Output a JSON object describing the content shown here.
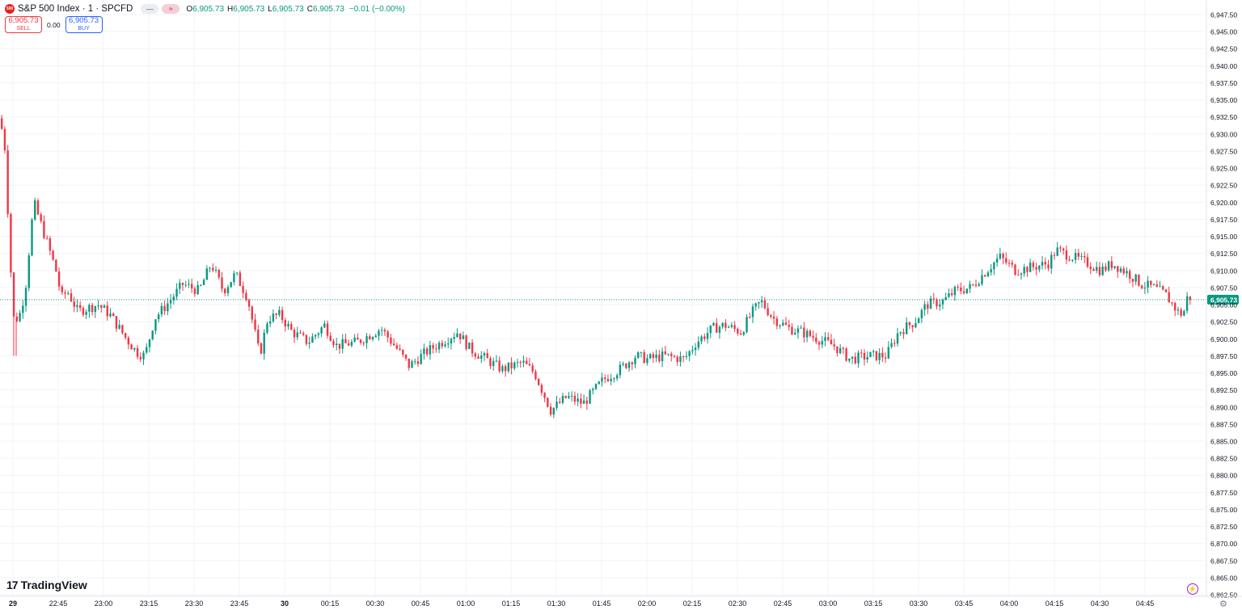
{
  "symbol": {
    "logo_text": "500",
    "title": "S&P 500 Index · 1 · SPCFD",
    "pill1": "—",
    "pill2": "≈"
  },
  "ohlc": {
    "o_label": "O",
    "o_value": "6,905.73",
    "h_label": "H",
    "h_value": "6,905.73",
    "l_label": "L",
    "l_value": "6,905.73",
    "c_label": "C",
    "c_value": "6,905.73",
    "change": "−0.01 (−0.00%)"
  },
  "trade": {
    "sell_price": "6,905.73",
    "sell_label": "SELL",
    "spread": "0.00",
    "buy_price": "6,905.73",
    "buy_label": "BUY"
  },
  "branding": {
    "logo_mark": "17",
    "logo_text": "TradingView"
  },
  "colors": {
    "up": "#089981",
    "down": "#f23645",
    "grid": "#f0f3fa",
    "axis_text": "#131722",
    "price_tag": "#089981"
  },
  "chart_data": {
    "type": "candlestick",
    "current_price": 6905.73,
    "current_price_label": "6,905.73",
    "y_axis": {
      "min": 6862.5,
      "max": 6947.5,
      "step": 2.5,
      "tick_labels": [
        "6,947.50",
        "6,945.00",
        "6,942.50",
        "6,940.00",
        "6,937.50",
        "6,935.00",
        "6,932.50",
        "6,930.00",
        "6,927.50",
        "6,925.00",
        "6,922.50",
        "6,920.00",
        "6,917.50",
        "6,915.00",
        "6,912.50",
        "6,910.00",
        "6,907.50",
        "6,905.00",
        "6,902.50",
        "6,900.00",
        "6,897.50",
        "6,895.00",
        "6,892.50",
        "6,890.00",
        "6,887.50",
        "6,885.00",
        "6,882.50",
        "6,880.00",
        "6,877.50",
        "6,875.00",
        "6,872.50",
        "6,870.00",
        "6,867.50",
        "6,865.00",
        "6,862.50"
      ]
    },
    "x_axis": {
      "tick_labels": [
        "29",
        "22:45",
        "23:00",
        "23:15",
        "23:30",
        "23:45",
        "30",
        "00:15",
        "00:30",
        "00:45",
        "01:00",
        "01:15",
        "01:30",
        "01:45",
        "02:00",
        "02:15",
        "02:30",
        "02:45",
        "03:00",
        "03:15",
        "03:30",
        "03:45",
        "04:00",
        "04:15",
        "04:30",
        "04:45"
      ]
    },
    "grid": true,
    "path_anchors_close": [
      [
        0,
        6931.5
      ],
      [
        2,
        6930.0
      ],
      [
        4,
        6929.8
      ],
      [
        15,
        6903.0
      ],
      [
        22,
        6903.0
      ],
      [
        30,
        6907.0
      ],
      [
        38,
        6917.0
      ],
      [
        42,
        6919.5
      ],
      [
        60,
        6913.0
      ],
      [
        68,
        6910.0
      ],
      [
        75,
        6906.0
      ],
      [
        82,
        6907.0
      ],
      [
        95,
        6904.0
      ],
      [
        120,
        6905.0
      ],
      [
        135,
        6903.5
      ],
      [
        155,
        6900.0
      ],
      [
        168,
        6898.0
      ],
      [
        178,
        6897.5
      ],
      [
        190,
        6903.0
      ],
      [
        205,
        6905.0
      ],
      [
        225,
        6908.0
      ],
      [
        245,
        6907.0
      ],
      [
        260,
        6911.0
      ],
      [
        275,
        6907.0
      ],
      [
        290,
        6909.5
      ],
      [
        305,
        6906.0
      ],
      [
        320,
        6897.5
      ],
      [
        330,
        6903.0
      ],
      [
        345,
        6903.5
      ],
      [
        360,
        6901.0
      ],
      [
        380,
        6899.5
      ],
      [
        400,
        6902.0
      ],
      [
        415,
        6899.0
      ],
      [
        440,
        6899.5
      ],
      [
        470,
        6901.5
      ],
      [
        490,
        6898.5
      ],
      [
        505,
        6896.0
      ],
      [
        525,
        6898.0
      ],
      [
        545,
        6899.5
      ],
      [
        565,
        6901.0
      ],
      [
        580,
        6898.5
      ],
      [
        600,
        6897.0
      ],
      [
        620,
        6895.5
      ],
      [
        645,
        6896.5
      ],
      [
        660,
        6895.0
      ],
      [
        680,
        6889.5
      ],
      [
        700,
        6891.5
      ],
      [
        720,
        6890.5
      ],
      [
        745,
        6894.0
      ],
      [
        765,
        6895.5
      ],
      [
        785,
        6897.5
      ],
      [
        800,
        6897.0
      ],
      [
        820,
        6897.5
      ],
      [
        845,
        6897.0
      ],
      [
        860,
        6899.5
      ],
      [
        880,
        6901.5
      ],
      [
        895,
        6902.0
      ],
      [
        915,
        6901.0
      ],
      [
        930,
        6904.0
      ],
      [
        940,
        6905.5
      ],
      [
        955,
        6903.0
      ],
      [
        975,
        6901.5
      ],
      [
        990,
        6901.0
      ],
      [
        1010,
        6900.0
      ],
      [
        1030,
        6899.0
      ],
      [
        1050,
        6897.0
      ],
      [
        1075,
        6897.5
      ],
      [
        1095,
        6897.5
      ],
      [
        1110,
        6901.0
      ],
      [
        1130,
        6902.5
      ],
      [
        1145,
        6905.0
      ],
      [
        1165,
        6905.5
      ],
      [
        1180,
        6907.0
      ],
      [
        1200,
        6907.5
      ],
      [
        1215,
        6909.5
      ],
      [
        1235,
        6912.0
      ],
      [
        1255,
        6910.0
      ],
      [
        1275,
        6910.5
      ],
      [
        1295,
        6911.0
      ],
      [
        1305,
        6913.0
      ],
      [
        1325,
        6912.0
      ],
      [
        1345,
        6911.0
      ],
      [
        1360,
        6910.0
      ],
      [
        1375,
        6911.0
      ],
      [
        1395,
        6909.5
      ],
      [
        1410,
        6908.0
      ],
      [
        1425,
        6907.5
      ],
      [
        1440,
        6906.5
      ],
      [
        1455,
        6904.0
      ],
      [
        1462,
        6903.5
      ],
      [
        1468,
        6906.5
      ],
      [
        1475,
        6905.73
      ]
    ]
  }
}
